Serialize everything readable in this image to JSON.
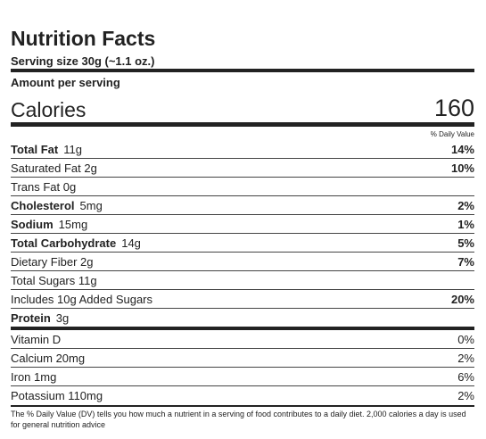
{
  "title": "Nutrition Facts",
  "serving_size": "Serving size 30g (~1.1 oz.)",
  "amount_per_serving": "Amount per serving",
  "calories": {
    "label": "Calories",
    "value": 160
  },
  "dv_header": "% Daily Value",
  "nutrients": [
    {
      "name": "Total Fat",
      "amount": "11g",
      "dv": "14%"
    },
    {
      "name": "Saturated Fat 2g",
      "dv": "10%"
    },
    {
      "name": "Trans Fat 0g"
    },
    {
      "name": "Cholesterol",
      "amount": "5mg",
      "dv": "2%"
    },
    {
      "name": "Sodium",
      "amount": "15mg",
      "dv": "1%"
    },
    {
      "name": "Total Carbohydrate",
      "amount": "14g",
      "dv": "5%"
    },
    {
      "name": "Dietary Fiber 2g",
      "dv": "7%"
    },
    {
      "name": "Total Sugars 11g"
    },
    {
      "name": "Includes 10g Added Sugars",
      "dv": "20%"
    },
    {
      "name": "Protein",
      "amount": "3g"
    }
  ],
  "vitamins": [
    {
      "name": "Vitamin D",
      "dv": "0%"
    },
    {
      "name": "Calcium 20mg",
      "dv": "2%"
    },
    {
      "name": "Iron 1mg",
      "dv": "6%"
    },
    {
      "name": "Potassium 110mg",
      "dv": "2%"
    }
  ],
  "footnote": "The % Daily Value (DV) tells you how much a nutrient in a serving of food contributes to a daily diet. 2,000 calories a day is used for general nutrition advice"
}
